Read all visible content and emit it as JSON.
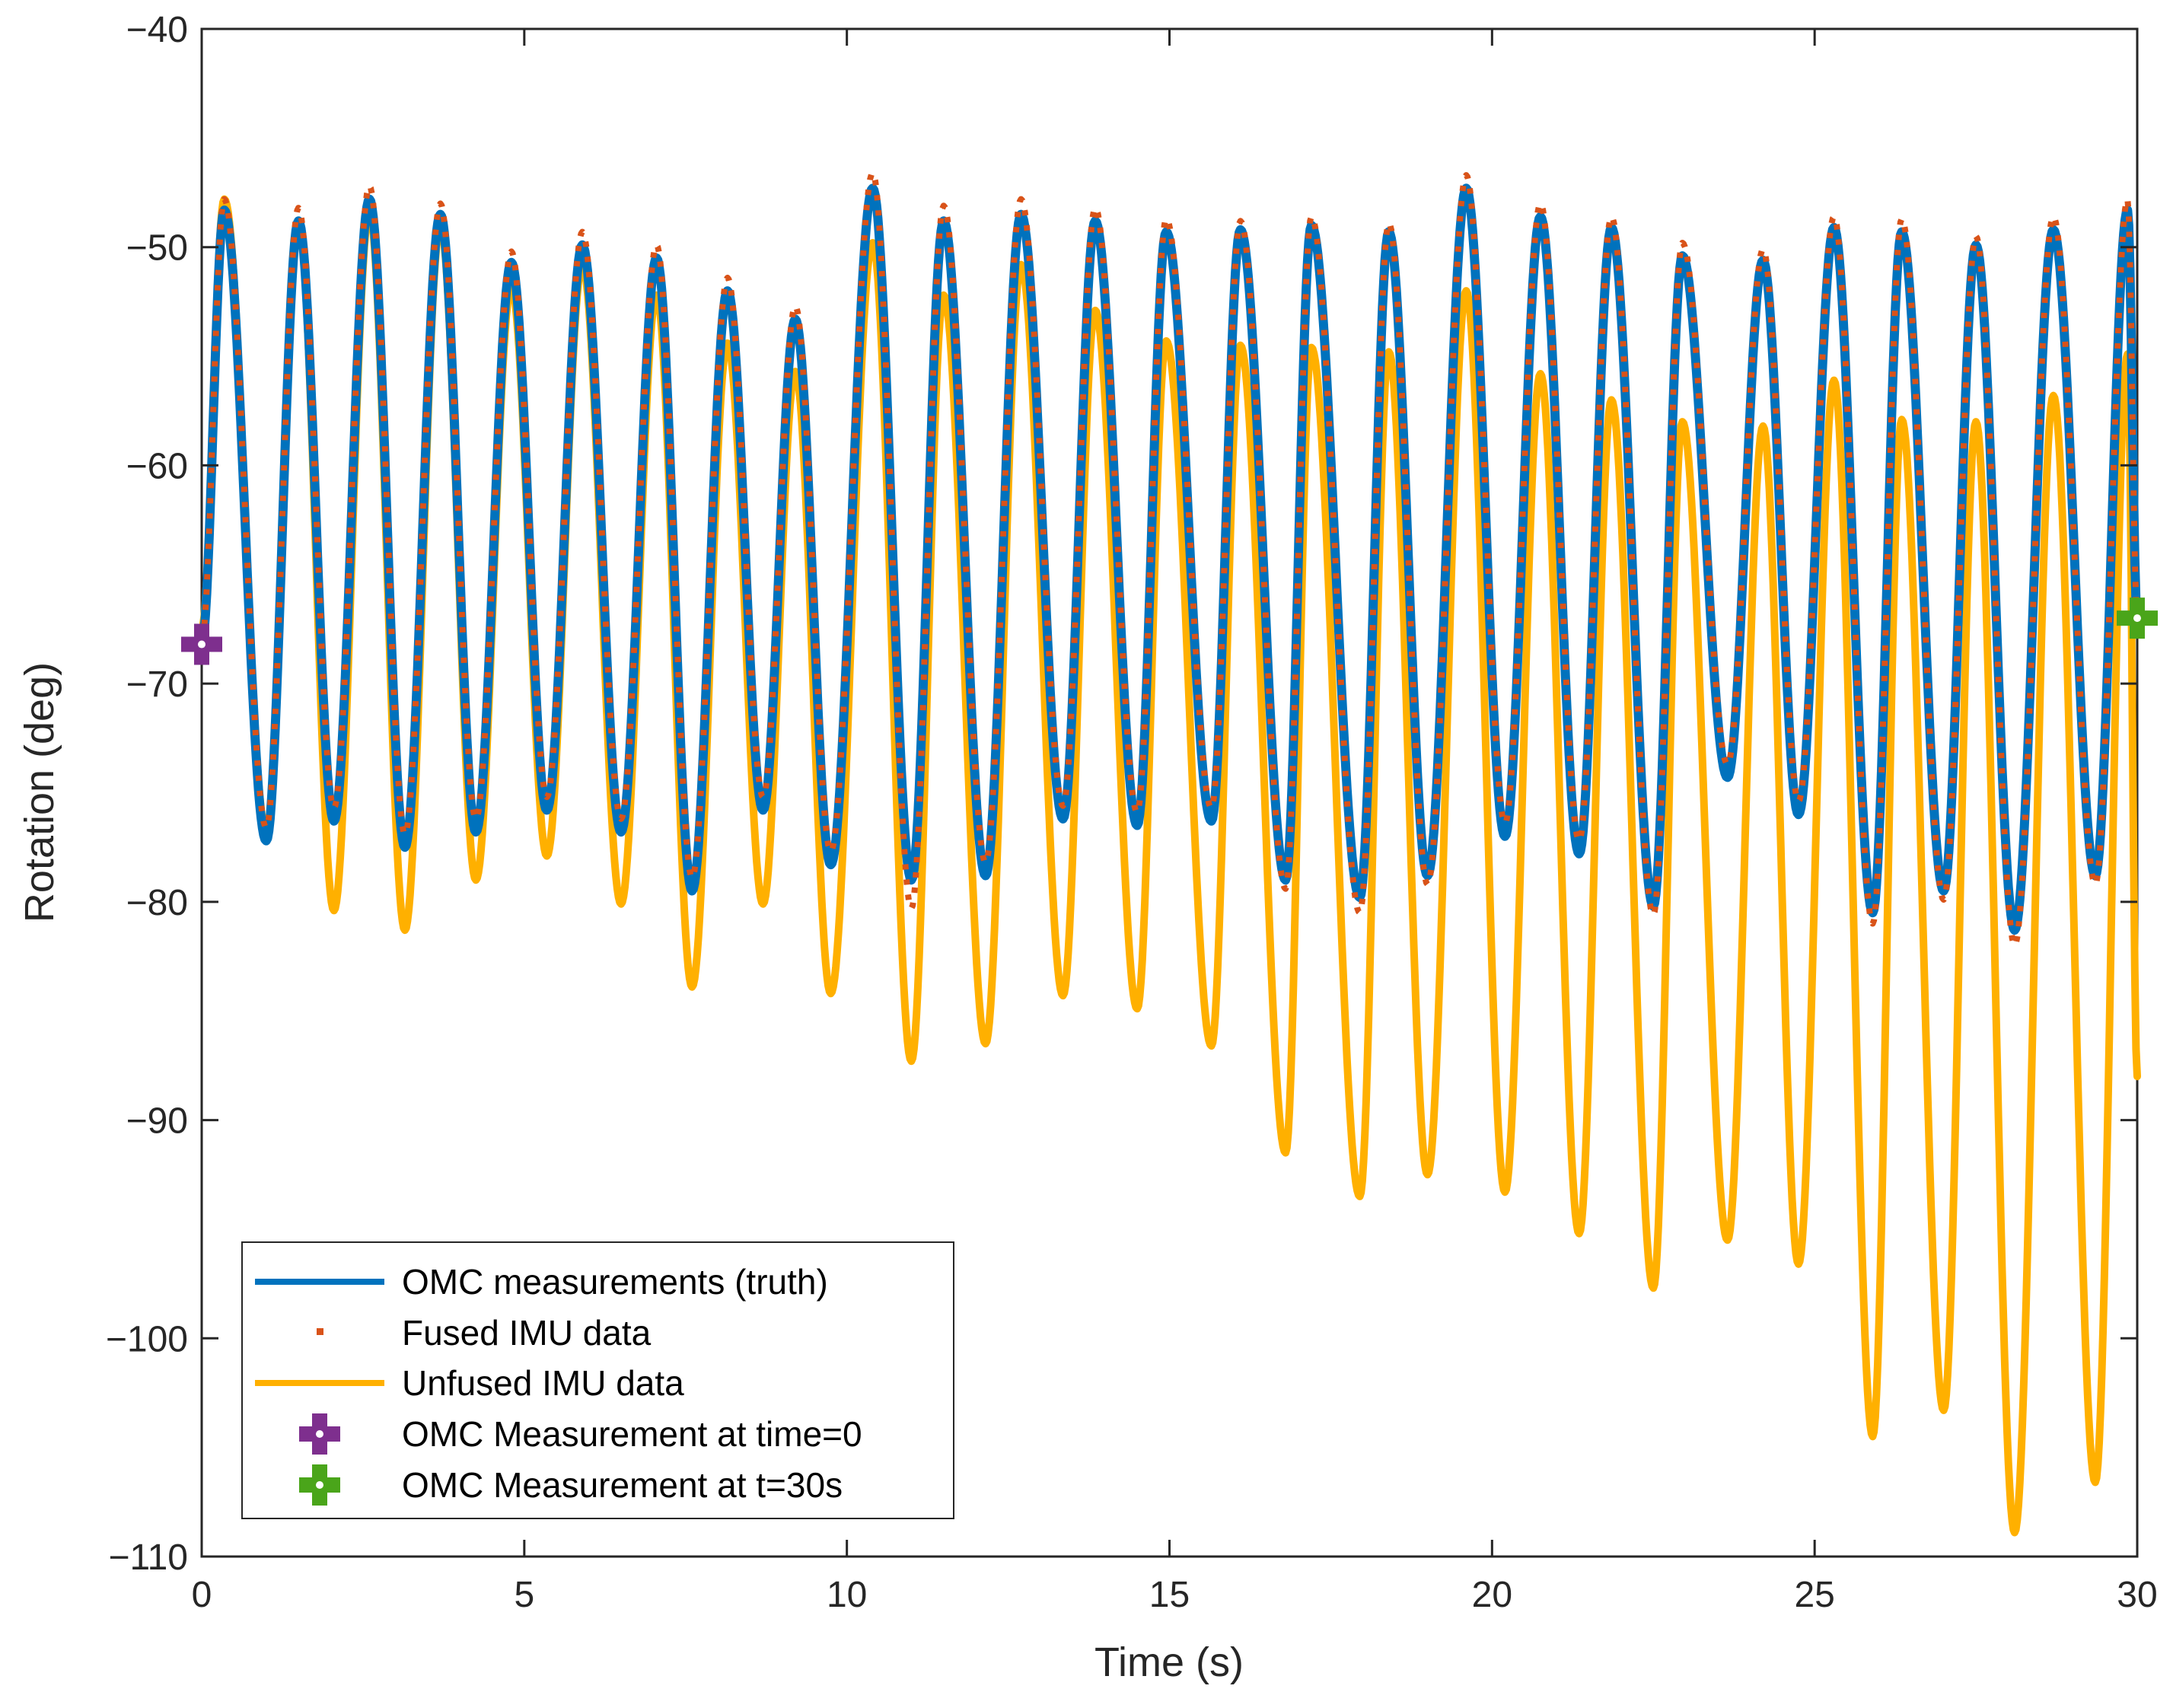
{
  "chart_data": {
    "type": "line",
    "title": "",
    "xlabel": "Time (s)",
    "ylabel": "Rotation (deg)",
    "xlim": [
      0,
      30
    ],
    "ylim": [
      -110,
      -40
    ],
    "xticks": [
      0,
      5,
      10,
      15,
      20,
      25,
      30
    ],
    "yticks": [
      -110,
      -100,
      -90,
      -80,
      -70,
      -60,
      -50,
      -40
    ],
    "xtick_labels": [
      "0",
      "5",
      "10",
      "15",
      "20",
      "25",
      "30"
    ],
    "ytick_labels": [
      "−110",
      "−100",
      "−90",
      "−80",
      "−70",
      "−60",
      "−50",
      "−40"
    ],
    "grid": false,
    "legend_position": "bottom-left",
    "series": [
      {
        "name": "OMC measurements (truth)",
        "style": "solid",
        "color": "#0072BD",
        "x": [
          0,
          0.35,
          1.0,
          1.5,
          2.05,
          2.6,
          3.15,
          3.7,
          4.25,
          4.8,
          5.35,
          5.9,
          6.5,
          7.05,
          7.6,
          8.15,
          8.7,
          9.2,
          9.75,
          10.4,
          11.0,
          11.5,
          12.15,
          12.7,
          13.35,
          13.85,
          14.5,
          14.95,
          15.65,
          16.1,
          16.8,
          17.2,
          17.95,
          18.4,
          19.0,
          19.6,
          20.2,
          20.75,
          21.35,
          21.85,
          22.5,
          22.95,
          23.65,
          24.2,
          24.75,
          25.3,
          25.9,
          26.35,
          27.0,
          27.5,
          28.1,
          28.7,
          29.35,
          29.85,
          30.0
        ],
        "y": [
          -68.2,
          -48.3,
          -77.2,
          -48.8,
          -76.3,
          -47.8,
          -77.5,
          -48.5,
          -76.8,
          -50.7,
          -75.8,
          -49.9,
          -76.8,
          -50.5,
          -79.5,
          -52.0,
          -75.8,
          -53.3,
          -78.3,
          -47.3,
          -79.0,
          -48.8,
          -78.8,
          -48.5,
          -76.2,
          -48.8,
          -76.5,
          -49.3,
          -76.3,
          -49.2,
          -79.0,
          -49.0,
          -79.8,
          -49.3,
          -78.8,
          -47.3,
          -77.0,
          -48.6,
          -77.8,
          -49.1,
          -80.2,
          -50.4,
          -74.3,
          -50.6,
          -76.0,
          -49.1,
          -80.5,
          -49.3,
          -79.5,
          -49.9,
          -81.3,
          -49.2,
          -78.8,
          -48.3,
          -67.0
        ]
      },
      {
        "name": "Fused IMU data",
        "style": "dotted",
        "color": "#D95319",
        "x": [
          0,
          0.35,
          1.0,
          1.5,
          2.05,
          2.6,
          3.15,
          3.7,
          4.25,
          4.8,
          5.35,
          5.9,
          6.5,
          7.05,
          7.6,
          8.15,
          8.7,
          9.2,
          9.75,
          10.4,
          11.0,
          11.5,
          12.15,
          12.7,
          13.35,
          13.85,
          14.5,
          14.95,
          15.65,
          16.1,
          16.8,
          17.2,
          17.95,
          18.4,
          19.0,
          19.6,
          20.2,
          20.75,
          21.35,
          21.85,
          22.5,
          22.95,
          23.65,
          24.2,
          24.75,
          25.3,
          25.9,
          26.35,
          27.0,
          27.5,
          28.1,
          28.7,
          29.35,
          29.85,
          30.0
        ],
        "y": [
          -68.0,
          -47.8,
          -76.6,
          -48.2,
          -75.7,
          -47.2,
          -76.9,
          -48.0,
          -76.2,
          -50.2,
          -75.2,
          -49.3,
          -76.2,
          -49.9,
          -78.9,
          -51.4,
          -75.2,
          -52.7,
          -77.7,
          -46.6,
          -80.3,
          -48.1,
          -78.2,
          -47.8,
          -75.6,
          -48.2,
          -75.9,
          -48.7,
          -75.7,
          -48.8,
          -79.4,
          -48.6,
          -80.5,
          -48.9,
          -79.2,
          -46.7,
          -76.4,
          -48.0,
          -77.2,
          -48.6,
          -80.6,
          -49.8,
          -73.7,
          -50.1,
          -75.4,
          -48.6,
          -81.0,
          -48.7,
          -79.9,
          -49.5,
          -82.0,
          -48.6,
          -79.2,
          -47.8,
          -67.0
        ]
      },
      {
        "name": "Unfused IMU data",
        "style": "solid",
        "color": "#FFB000",
        "x": [
          0,
          0.35,
          1.0,
          1.5,
          2.05,
          2.6,
          3.15,
          3.7,
          4.25,
          4.8,
          5.35,
          5.9,
          6.5,
          7.05,
          7.6,
          8.15,
          8.7,
          9.2,
          9.75,
          10.4,
          11.0,
          11.5,
          12.15,
          12.7,
          13.35,
          13.85,
          14.5,
          14.95,
          15.65,
          16.1,
          16.8,
          17.2,
          17.95,
          18.4,
          19.0,
          19.6,
          20.2,
          20.75,
          21.35,
          21.85,
          22.5,
          22.95,
          23.65,
          24.2,
          24.75,
          25.3,
          25.9,
          26.35,
          27.0,
          27.5,
          28.1,
          28.7,
          29.35,
          29.85,
          30.0
        ],
        "y": [
          -67.5,
          -47.8,
          -76.8,
          -48.8,
          -80.4,
          -48.4,
          -81.3,
          -49.0,
          -79.0,
          -51.8,
          -77.9,
          -50.8,
          -80.1,
          -52.2,
          -83.9,
          -54.4,
          -80.1,
          -55.7,
          -84.2,
          -49.8,
          -87.3,
          -52.2,
          -86.5,
          -50.8,
          -84.3,
          -52.9,
          -84.9,
          -54.3,
          -86.6,
          -54.5,
          -91.5,
          -54.6,
          -93.5,
          -54.8,
          -92.5,
          -52.0,
          -93.3,
          -55.8,
          -95.2,
          -57.0,
          -97.7,
          -58.0,
          -95.5,
          -58.2,
          -96.6,
          -56.1,
          -104.5,
          -57.9,
          -103.3,
          -58.0,
          -108.9,
          -56.8,
          -106.6,
          -54.9,
          -88.0
        ]
      }
    ],
    "markers": [
      {
        "name": "OMC Measurement at time=0",
        "x": 0,
        "y": -68.2,
        "color": "#7E2F8E"
      },
      {
        "name": "OMC Measurement at t=30s",
        "x": 30,
        "y": -67.0,
        "color": "#4AA51A"
      }
    ]
  }
}
